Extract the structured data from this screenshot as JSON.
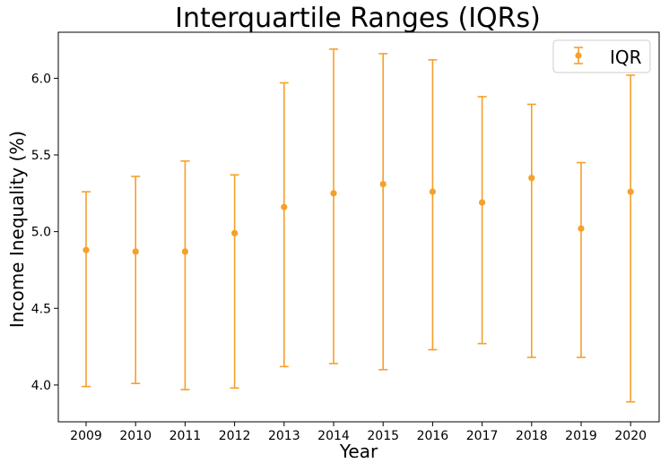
{
  "chart_data": {
    "type": "scatter",
    "title": "Interquartile Ranges (IQRs)",
    "xlabel": "Year",
    "ylabel": "Income Inequality (%)",
    "categories": [
      "2009",
      "2010",
      "2011",
      "2012",
      "2013",
      "2014",
      "2015",
      "2016",
      "2017",
      "2018",
      "2019",
      "2020"
    ],
    "series": [
      {
        "name": "IQR",
        "color": "#f5a02a",
        "values": [
          4.88,
          4.87,
          4.87,
          4.99,
          5.16,
          5.25,
          5.31,
          5.26,
          5.19,
          5.35,
          5.02,
          5.26
        ],
        "lower": [
          3.99,
          4.01,
          3.97,
          3.98,
          4.12,
          4.14,
          4.1,
          4.23,
          4.27,
          4.18,
          4.18,
          3.89
        ],
        "upper": [
          5.26,
          5.36,
          5.46,
          5.37,
          5.97,
          6.19,
          6.16,
          6.12,
          5.88,
          5.83,
          5.45,
          6.02
        ]
      }
    ],
    "ylim": [
      3.76,
      6.3
    ],
    "yticks": [
      "4.0",
      "4.5",
      "5.0",
      "5.5",
      "6.0"
    ],
    "grid": false,
    "legend_position": "top-right"
  }
}
